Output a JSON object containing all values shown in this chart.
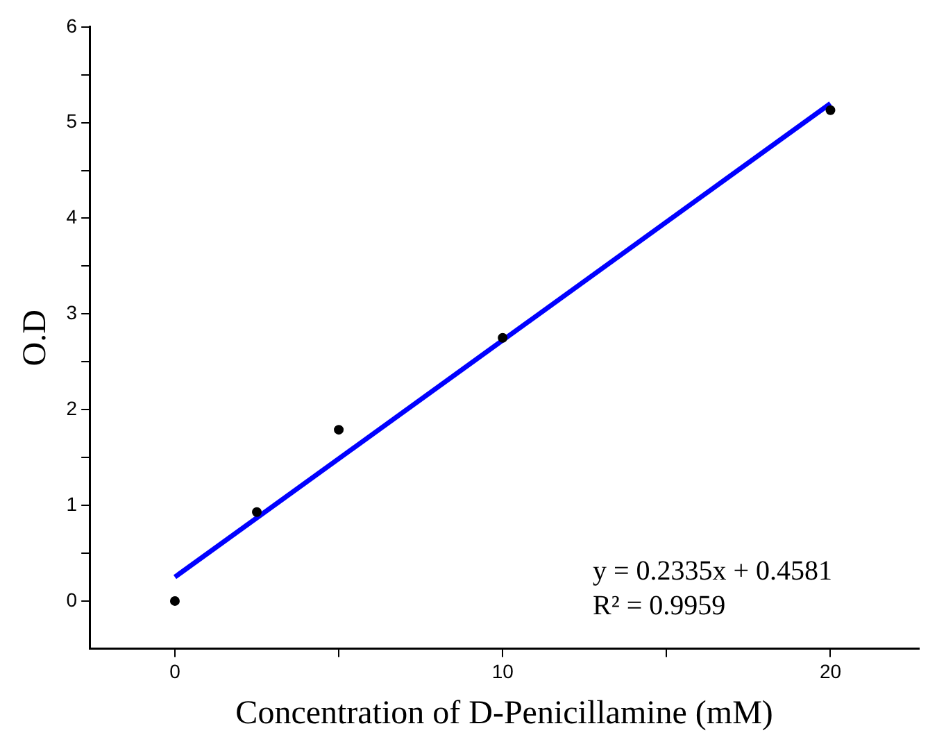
{
  "chart_data": {
    "type": "scatter",
    "xlabel": "Concentration of D-Penicillamine (mM)",
    "ylabel": "O.D",
    "xlim": [
      -2.6,
      22.7
    ],
    "ylim": [
      -0.5,
      6
    ],
    "xticks": [
      0,
      {
        "value": 5,
        "label": null
      },
      10,
      {
        "value": 15,
        "label": null
      },
      20
    ],
    "yticks": [
      0,
      {
        "value": 0.5,
        "label": null
      },
      1,
      {
        "value": 1.5,
        "label": null
      },
      2,
      {
        "value": 2.5,
        "label": null
      },
      3,
      {
        "value": 3.5,
        "label": null
      },
      4,
      {
        "value": 4.5,
        "label": null
      },
      5,
      {
        "value": 5.5,
        "label": null
      },
      6
    ],
    "grid": false,
    "legend": false,
    "series": [
      {
        "type": "scatter",
        "marker": "circle",
        "color": "#000000",
        "x": [
          0,
          2.5,
          5,
          10,
          20
        ],
        "values": [
          0,
          0.93,
          1.79,
          2.75,
          5.13
        ]
      },
      {
        "type": "line",
        "color": "#0000ff",
        "x": [
          0,
          20
        ],
        "values": [
          0.25,
          5.2
        ],
        "line_style": "solid"
      }
    ],
    "annotations": [
      "y = 0.2335x + 0.4581",
      "R² = 0.9959"
    ]
  }
}
